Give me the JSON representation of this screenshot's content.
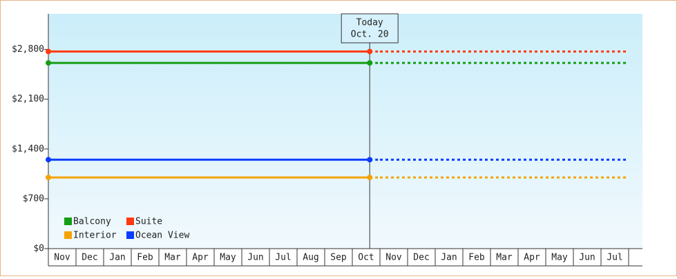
{
  "chart_data": {
    "type": "line",
    "categories": [
      "Nov",
      "Dec",
      "Jan",
      "Feb",
      "Mar",
      "Apr",
      "May",
      "Jun",
      "Jul",
      "Aug",
      "Sep",
      "Oct",
      "Nov",
      "Dec",
      "Jan",
      "Feb",
      "Mar",
      "Apr",
      "May",
      "Jun",
      "Jul"
    ],
    "series": [
      {
        "name": "Balcony",
        "color": "#139e13",
        "values": [
          2610,
          2610,
          2610,
          2610,
          2610,
          2610,
          2610,
          2610,
          2610,
          2610,
          2610,
          2610,
          2610,
          2610,
          2610,
          2610,
          2610,
          2610,
          2610,
          2610,
          2610
        ]
      },
      {
        "name": "Suite",
        "color": "#ff3a10",
        "values": [
          2770,
          2770,
          2770,
          2770,
          2770,
          2770,
          2770,
          2770,
          2770,
          2770,
          2770,
          2770,
          2770,
          2770,
          2770,
          2770,
          2770,
          2770,
          2770,
          2770,
          2770
        ]
      },
      {
        "name": "Interior",
        "color": "#f5a300",
        "values": [
          1000,
          1000,
          1000,
          1000,
          1000,
          1000,
          1000,
          1000,
          1000,
          1000,
          1000,
          1000,
          1000,
          1000,
          1000,
          1000,
          1000,
          1000,
          1000,
          1000,
          1000
        ]
      },
      {
        "name": "Ocean View",
        "color": "#0a3cff",
        "values": [
          1250,
          1250,
          1250,
          1250,
          1250,
          1250,
          1250,
          1250,
          1250,
          1250,
          1250,
          1250,
          1250,
          1250,
          1250,
          1250,
          1250,
          1250,
          1250,
          1250,
          1250
        ]
      }
    ],
    "annotation": {
      "text": [
        "Today",
        "Oct. 20"
      ],
      "x": 11.63
    },
    "ylim": [
      0,
      3300
    ],
    "yticks": [
      {
        "value": 0,
        "label": "$0"
      },
      {
        "value": 700,
        "label": "$700"
      },
      {
        "value": 1400,
        "label": "$1,400"
      },
      {
        "value": 2100,
        "label": "$2,100"
      },
      {
        "value": 2800,
        "label": "$2,800"
      }
    ],
    "legend": "lower left"
  }
}
